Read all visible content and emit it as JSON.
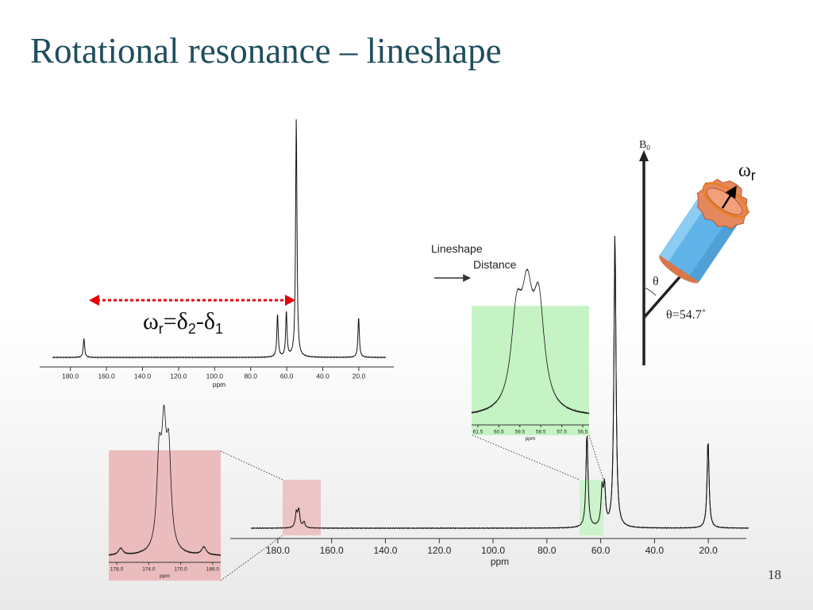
{
  "slide": {
    "title": "Rotational resonance – lineshape",
    "page_number": "18"
  },
  "annotation": {
    "lineshape": "Lineshape",
    "distance": "Distance"
  },
  "formula": {
    "omega": "ω",
    "omega_sub": "r",
    "eq_delta": "=δ",
    "delta_sub2": "2",
    "minus_delta": "-δ",
    "delta_sub1": "1",
    "arrow_color": "#e8000b"
  },
  "rotor": {
    "b0_letter": "B",
    "b0_sub": "0",
    "omega": "ω",
    "omega_sub": "r",
    "theta": "θ",
    "theta_value": "θ=54.7˚",
    "cylinder_color": "#5fb3e8",
    "cap_color": "#e5885e"
  },
  "colors": {
    "title": "#1f4e5f",
    "green_inset": "#c6f3c4",
    "red_inset": "#ebbcbd"
  },
  "chart_data": [
    {
      "type": "line",
      "name": "top-spectrum",
      "xlabel": "ppm",
      "xlim": [
        190,
        5
      ],
      "ticks": [
        "180.0",
        "160.0",
        "140.0",
        "120.0",
        "100.0",
        "80.0",
        "60.0",
        "40.0",
        "20.0"
      ],
      "tick_values": [
        180,
        160,
        140,
        120,
        100,
        80,
        60,
        40,
        20
      ],
      "peaks": [
        [
          172.5,
          0.08
        ],
        [
          65.1,
          0.18
        ],
        [
          60.2,
          0.19
        ],
        [
          54.7,
          1.0
        ],
        [
          20.1,
          0.17
        ]
      ]
    },
    {
      "type": "line",
      "name": "bottom-spectrum",
      "xlabel": "ppm",
      "xlim": [
        190,
        5
      ],
      "ticks": [
        "180.0",
        "160.0",
        "140.0",
        "120.0",
        "100.0",
        "80.0",
        "60.0",
        "40.0",
        "20.0"
      ],
      "tick_values": [
        180,
        160,
        140,
        120,
        100,
        80,
        60,
        40,
        20
      ],
      "peaks": [
        [
          173.1,
          0.05
        ],
        [
          172.2,
          0.06
        ],
        [
          170.3,
          0.02
        ],
        [
          65.1,
          0.32
        ],
        [
          59.5,
          0.12
        ],
        [
          58.6,
          0.13
        ],
        [
          54.7,
          1.0
        ],
        [
          20.1,
          0.3
        ]
      ]
    },
    {
      "type": "line",
      "name": "green-inset",
      "xlabel": "ppm",
      "xlim": [
        61.8,
        56.2
      ],
      "ticks": [
        "61.5",
        "60.5",
        "59.5",
        "58.5",
        "57.5",
        "56.5"
      ],
      "tick_values": [
        61.5,
        60.5,
        59.5,
        58.5,
        57.5,
        56.5
      ],
      "peaks": [
        [
          59.65,
          0.82
        ],
        [
          59.15,
          0.9
        ],
        [
          58.6,
          0.94
        ]
      ]
    },
    {
      "type": "line",
      "name": "red-inset",
      "xlabel": "ppm",
      "xlim": [
        179,
        165
      ],
      "ticks": [
        "178.0",
        "174.0",
        "170.0",
        "166.0"
      ],
      "tick_values": [
        178,
        174,
        170,
        166
      ],
      "peaks": [
        [
          177.5,
          0.06
        ],
        [
          172.7,
          0.78
        ],
        [
          172.1,
          0.95
        ],
        [
          171.5,
          0.82
        ],
        [
          167.1,
          0.07
        ]
      ]
    }
  ]
}
